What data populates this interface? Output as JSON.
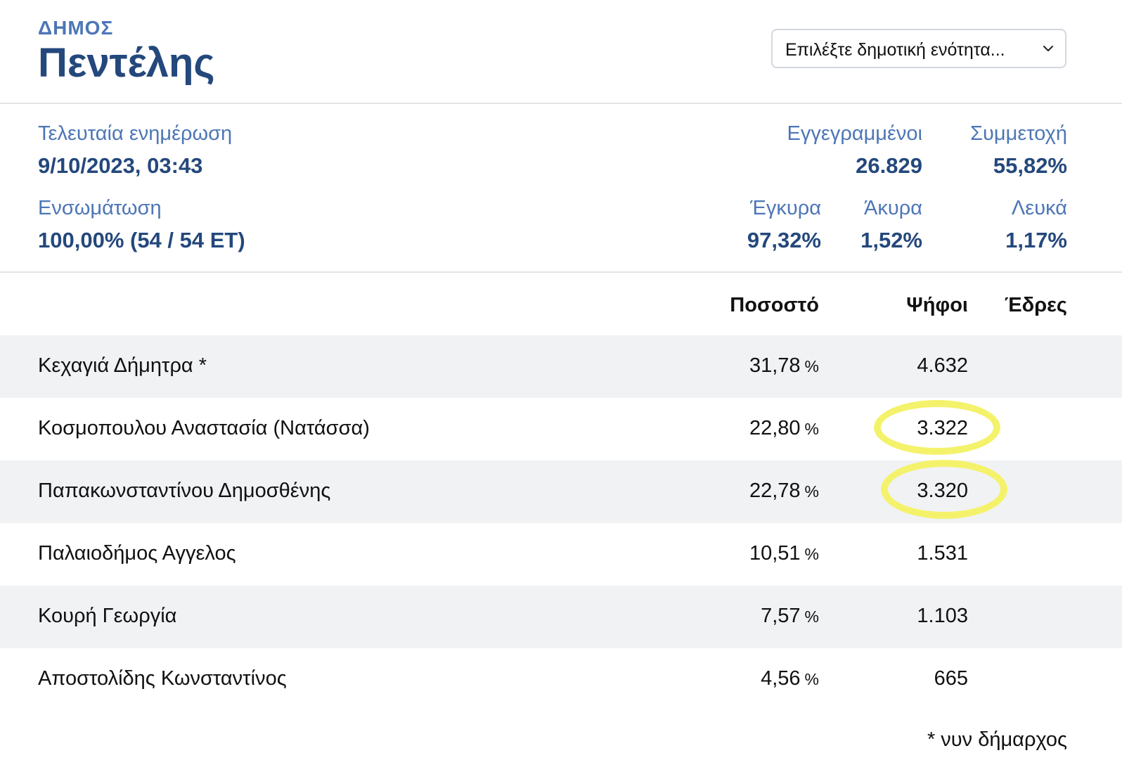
{
  "header": {
    "kicker": "ΔΗΜΟΣ",
    "title": "Πεντέλης",
    "select_value": "Επιλέξτε δημοτική ενότητα..."
  },
  "info": {
    "last_update_label": "Τελευταία ενημέρωση",
    "last_update_value": "9/10/2023, 03:43",
    "registered_label": "Εγγεγραμμένοι",
    "registered_value": "26.829",
    "turnout_label": "Συμμετοχή",
    "turnout_value": "55,82%",
    "incorporation_label": "Ενσωμάτωση",
    "incorporation_value": "100,00% (54 / 54 ΕΤ)",
    "valid_label": "Έγκυρα",
    "valid_value": "97,32%",
    "invalid_label": "Άκυρα",
    "invalid_value": "1,52%",
    "blank_label": "Λευκά",
    "blank_value": "1,17%"
  },
  "table": {
    "columns": [
      "Ποσοστό",
      "Ψήφοι",
      "Έδρες"
    ],
    "percent_unit": "%",
    "rows": [
      {
        "name": "Κεχαγιά Δήμητρα *",
        "percent": "31,78",
        "votes": "4.632",
        "seats": ""
      },
      {
        "name": "Κοσμοπουλου Αναστασία (Νατάσσα)",
        "percent": "22,80",
        "votes": "3.322",
        "seats": ""
      },
      {
        "name": "Παπακωνσταντίνου Δημοσθένης",
        "percent": "22,78",
        "votes": "3.320",
        "seats": ""
      },
      {
        "name": "Παλαιοδήμος Αγγελος",
        "percent": "10,51",
        "votes": "1.531",
        "seats": ""
      },
      {
        "name": "Κουρή Γεωργία",
        "percent": "7,57",
        "votes": "1.103",
        "seats": ""
      },
      {
        "name": "Αποστολίδης Κωνσταντίνος",
        "percent": "4,56",
        "votes": "665",
        "seats": ""
      }
    ]
  },
  "footnote": "* νυν δήμαρχος",
  "colors": {
    "accent_dark": "#24487c",
    "accent_light": "#4d76b6",
    "row_alt": "#f1f2f4",
    "highlight": "#f4f26b"
  }
}
